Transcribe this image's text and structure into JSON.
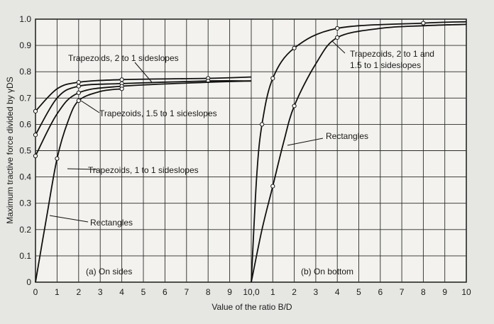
{
  "chart_data": {
    "type": "line",
    "ylabel": "Maximum tractive force divided by γDS",
    "xlabel": "Value of the ratio B/D",
    "ylim": [
      0,
      1.0
    ],
    "y_ticks": [
      "0",
      "0.1",
      "0.2",
      "0.3",
      "0.4",
      "0.5",
      "0.6",
      "0.7",
      "0.8",
      "0.9",
      "1.0"
    ],
    "x_ticks_a": [
      "0",
      "1",
      "2",
      "3",
      "4",
      "5",
      "6",
      "7",
      "8",
      "9",
      "10"
    ],
    "x_ticks_b": [
      "0",
      "1",
      "2",
      "3",
      "4",
      "5",
      "6",
      "7",
      "8",
      "9",
      "10"
    ],
    "x_shared_label": "10,0",
    "grid": true,
    "panels": [
      {
        "id": "a",
        "label": "(a) On sides",
        "xlim": [
          0,
          10
        ],
        "series": [
          {
            "name": "Trapezoids, 2 to 1 sideslopes",
            "x": [
              0,
              1,
              2,
              4,
              8,
              10
            ],
            "y": [
              0.65,
              0.735,
              0.76,
              0.77,
              0.775,
              0.78
            ],
            "markers": [
              0,
              2,
              4,
              8
            ]
          },
          {
            "name": "Trapezoids, 1.5 to 1 sideslopes",
            "x": [
              0,
              1,
              2,
              4,
              8,
              10
            ],
            "y": [
              0.56,
              0.7,
              0.745,
              0.755,
              0.765,
              0.765
            ],
            "markers": [
              0,
              2,
              4,
              8
            ]
          },
          {
            "name": "Trapezoids, 1 to 1 sideslopes",
            "x": [
              0,
              1,
              2,
              4,
              8,
              10
            ],
            "y": [
              0.48,
              0.64,
              0.72,
              0.745,
              0.76,
              0.765
            ],
            "markers": [
              0,
              2,
              4
            ]
          },
          {
            "name": "Rectangles",
            "x": [
              0,
              0.5,
              1,
              1.5,
              2,
              3,
              4
            ],
            "y": [
              0.0,
              0.24,
              0.47,
              0.61,
              0.69,
              0.725,
              0.735
            ],
            "markers": [
              1,
              2,
              4
            ]
          }
        ]
      },
      {
        "id": "b",
        "label": "(b) On bottom",
        "xlim": [
          0,
          10
        ],
        "series": [
          {
            "name": "Trapezoids, 2 to 1 and 1.5 to 1 sideslopes",
            "x": [
              0,
              0.25,
              0.5,
              1,
              2,
              4,
              8,
              10
            ],
            "y": [
              0.0,
              0.4,
              0.6,
              0.775,
              0.89,
              0.965,
              0.985,
              0.99
            ],
            "markers": [
              0.5,
              1,
              2,
              4,
              8
            ]
          },
          {
            "name": "Rectangles",
            "x": [
              0,
              0.5,
              1,
              1.5,
              2,
              3,
              4,
              6,
              8,
              10
            ],
            "y": [
              0.0,
              0.2,
              0.365,
              0.53,
              0.67,
              0.83,
              0.93,
              0.965,
              0.975,
              0.98
            ],
            "markers": [
              1,
              2,
              4
            ]
          }
        ]
      }
    ],
    "annotations": [
      {
        "text": "Trapezoids, 2 to 1 sideslopes"
      },
      {
        "text": "Trapezoids, 1.5 to 1 sideslopes"
      },
      {
        "text": "Trapezoids, 1 to 1 sideslopes"
      },
      {
        "text": "Rectangles"
      },
      {
        "text": "Trapezoids, 2 to 1 and"
      },
      {
        "text": "1.5 to 1 sideslopes"
      },
      {
        "text": "Rectangles"
      }
    ]
  }
}
